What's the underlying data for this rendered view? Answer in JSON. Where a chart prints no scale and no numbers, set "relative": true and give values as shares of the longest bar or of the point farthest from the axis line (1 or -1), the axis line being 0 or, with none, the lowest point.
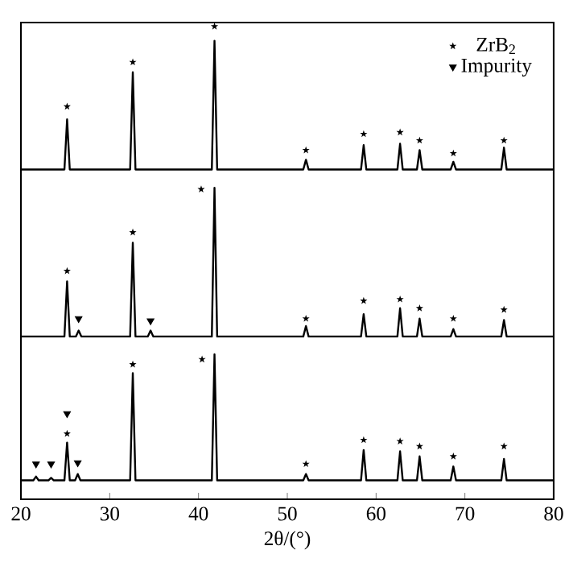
{
  "chart_data": [
    {
      "type": "line",
      "relative": true,
      "xlim": [
        20,
        80
      ],
      "tick_labels": false,
      "legend": "top right",
      "series": [
        {
          "color": "#000000",
          "x": [
            20,
            24.9,
            25.2,
            25.5,
            32.3,
            32.6,
            32.9,
            41.5,
            41.8,
            42.1,
            51.8,
            52.1,
            52.4,
            58.3,
            58.6,
            58.9,
            62.4,
            62.7,
            63.0,
            64.6,
            64.9,
            65.2,
            68.4,
            68.7,
            69.0,
            74.1,
            74.4,
            74.7,
            80
          ],
          "values": [
            0,
            0,
            0.35,
            0,
            0,
            0.68,
            0,
            0,
            0.9,
            0,
            0,
            0.068,
            0,
            0,
            0.17,
            0,
            0,
            0.18,
            0,
            0,
            0.135,
            0,
            0,
            0.054,
            0,
            0,
            0.153,
            0,
            0
          ]
        },
        {
          "type": "scatter",
          "name": "ZrB$_{2}$",
          "marker": "star",
          "color": "#000000",
          "x": [
            25.2,
            32.6,
            41.8,
            52.1,
            58.6,
            62.7,
            64.9,
            68.7,
            74.4
          ],
          "values": [
            0.44,
            0.75,
            1,
            0.135,
            0.248,
            0.26,
            0.203,
            0.113,
            0.203
          ]
        },
        {
          "type": "scatter",
          "name": "Impurity",
          "marker": "triangle",
          "color": "#000000"
        }
      ]
    },
    {
      "type": "line",
      "relative": true,
      "xlim": [
        20,
        80
      ],
      "tick_labels": false,
      "series": [
        {
          "color": "#000000",
          "x": [
            20,
            24.9,
            25.2,
            25.5,
            26.2,
            26.5,
            26.8,
            32.3,
            32.6,
            32.9,
            34.3,
            34.6,
            34.9,
            41.5,
            41.8,
            42.1,
            51.8,
            52.1,
            52.4,
            58.3,
            58.6,
            58.9,
            62.4,
            62.7,
            63.0,
            64.6,
            64.9,
            65.2,
            68.4,
            68.7,
            69.0,
            74.1,
            74.4,
            74.7,
            80
          ],
          "values": [
            0,
            0,
            0.37,
            0,
            0,
            0.04,
            0,
            0,
            0.63,
            0,
            0,
            0.04,
            0,
            0,
            1,
            0,
            0,
            0.07,
            0,
            0,
            0.15,
            0,
            0,
            0.19,
            0,
            0,
            0.12,
            0,
            0,
            0.05,
            0,
            0,
            0.11,
            0,
            0
          ]
        },
        {
          "type": "scatter",
          "marker": "star",
          "color": "#000000",
          "x": [
            25.2,
            32.6,
            40.3,
            52.1,
            58.6,
            62.7,
            64.9,
            68.7,
            74.4
          ],
          "values": [
            0.44,
            0.7,
            0.99,
            0.12,
            0.24,
            0.25,
            0.19,
            0.12,
            0.18
          ]
        },
        {
          "type": "scatter",
          "marker": "triangle",
          "color": "#000000",
          "x": [
            26.5,
            34.6
          ],
          "values": [
            0.12,
            0.105
          ]
        }
      ]
    },
    {
      "type": "line",
      "relative": true,
      "xlim": [
        20,
        80
      ],
      "xticks": [
        20,
        30,
        40,
        50,
        60,
        70,
        80
      ],
      "tick_labels": "x",
      "xlabel": "2θ/(°)",
      "series": [
        {
          "color": "#000000",
          "x": [
            20,
            21.4,
            21.7,
            22.0,
            23.1,
            23.4,
            23.7,
            24.9,
            25.2,
            25.5,
            26.1,
            26.4,
            26.7,
            32.3,
            32.6,
            32.9,
            41.5,
            41.8,
            42.1,
            51.8,
            52.1,
            52.4,
            58.3,
            58.6,
            58.9,
            62.4,
            62.7,
            63.0,
            64.6,
            64.9,
            65.2,
            68.4,
            68.7,
            69.0,
            74.1,
            74.4,
            74.7,
            80
          ],
          "values": [
            0,
            0,
            0.03,
            0,
            0,
            0.02,
            0,
            0,
            0.3,
            0,
            0,
            0.05,
            0,
            0,
            0.85,
            0,
            0,
            1,
            0,
            0,
            0.05,
            0,
            0,
            0.24,
            0,
            0,
            0.23,
            0,
            0,
            0.19,
            0,
            0,
            0.11,
            0,
            0,
            0.17,
            0,
            0
          ]
        },
        {
          "type": "scatter",
          "marker": "star",
          "color": "#000000",
          "x": [
            25.2,
            32.6,
            40.4,
            52.1,
            58.6,
            62.7,
            64.9,
            68.7,
            74.4
          ],
          "values": [
            0.37,
            0.92,
            0.96,
            0.13,
            0.32,
            0.31,
            0.27,
            0.19,
            0.27
          ]
        },
        {
          "type": "scatter",
          "marker": "triangle",
          "color": "#000000",
          "x": [
            21.7,
            23.4,
            25.2,
            26.4
          ],
          "values": [
            0.13,
            0.13,
            0.53,
            0.14
          ]
        }
      ]
    }
  ]
}
